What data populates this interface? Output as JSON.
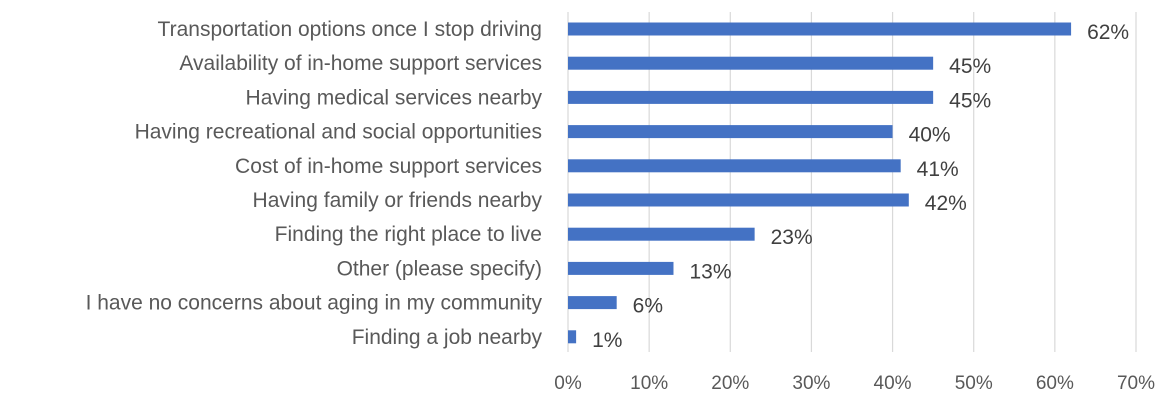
{
  "chart_data": {
    "type": "bar",
    "orientation": "horizontal",
    "title": "",
    "xlabel": "",
    "ylabel": "",
    "categories": [
      "Transportation options once I stop driving",
      "Availability of in-home support services",
      "Having medical services nearby",
      "Having recreational and social opportunities",
      "Cost of in-home support services",
      "Having family or friends nearby",
      "Finding the right place to live",
      "Other (please specify)",
      "I have no concerns about aging in my community",
      "Finding a job nearby"
    ],
    "values": [
      62,
      45,
      45,
      40,
      41,
      42,
      23,
      13,
      6,
      1
    ],
    "data_labels": [
      "62%",
      "45%",
      "45%",
      "40%",
      "41%",
      "42%",
      "23%",
      "13%",
      "6%",
      "1%"
    ],
    "xlim": [
      0,
      70
    ],
    "x_ticks": [
      0,
      10,
      20,
      30,
      40,
      50,
      60,
      70
    ],
    "x_tick_labels": [
      "0%",
      "10%",
      "20%",
      "30%",
      "40%",
      "50%",
      "60%",
      "70%"
    ],
    "grid": true,
    "legend": "none",
    "bar_color": "#4472C4"
  }
}
